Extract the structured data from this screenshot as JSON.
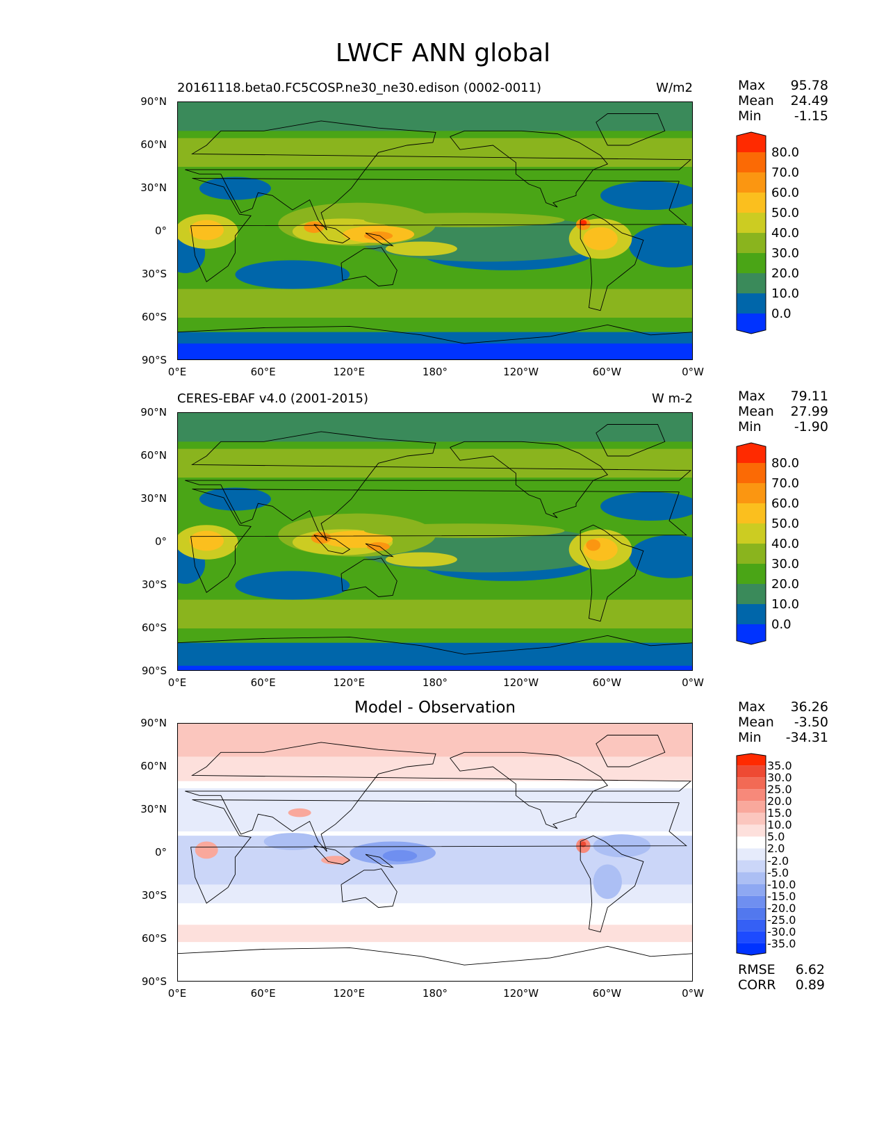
{
  "figure_title": "LWCF ANN global",
  "y_ticks": [
    "90°N",
    "60°N",
    "30°N",
    "0°",
    "30°S",
    "60°S",
    "90°S"
  ],
  "x_ticks": [
    "0°E",
    "60°E",
    "120°E",
    "180°",
    "120°W",
    "60°W",
    "0°W"
  ],
  "panels": [
    {
      "title_left": "20161118.beta0.FC5COSP.ne30_ne30.edison (0002-0011)",
      "title_right": "W/m2",
      "title_center": "",
      "stats": [
        {
          "label": "Max",
          "value": "95.78"
        },
        {
          "label": "Mean",
          "value": "24.49"
        },
        {
          "label": "Min",
          "value": "-1.15"
        }
      ],
      "colorbar_labels": [
        "80.0",
        "70.0",
        "60.0",
        "50.0",
        "40.0",
        "30.0",
        "20.0",
        "10.0",
        "0.0"
      ]
    },
    {
      "title_left": "CERES-EBAF v4.0 (2001-2015)",
      "title_right": "W m-2",
      "title_center": "",
      "stats": [
        {
          "label": "Max",
          "value": "79.11"
        },
        {
          "label": "Mean",
          "value": "27.99"
        },
        {
          "label": "Min",
          "value": "-1.90"
        }
      ],
      "colorbar_labels": [
        "80.0",
        "70.0",
        "60.0",
        "50.0",
        "40.0",
        "30.0",
        "20.0",
        "10.0",
        "0.0"
      ]
    },
    {
      "title_left": "",
      "title_right": "",
      "title_center": "Model - Observation",
      "stats": [
        {
          "label": "Max",
          "value": "36.26"
        },
        {
          "label": "Mean",
          "value": "-3.50"
        },
        {
          "label": "Min",
          "value": "-34.31"
        }
      ],
      "colorbar_labels": [
        "35.0",
        "30.0",
        "25.0",
        "20.0",
        "15.0",
        "10.0",
        "5.0",
        "2.0",
        "-2.0",
        "-5.0",
        "-10.0",
        "-15.0",
        "-20.0",
        "-25.0",
        "-30.0",
        "-35.0"
      ],
      "metrics": [
        {
          "label": "RMSE",
          "value": "6.62"
        },
        {
          "label": "CORR",
          "value": "0.89"
        }
      ]
    }
  ],
  "chart_data": [
    {
      "type": "heatmap",
      "title": "20161118.beta0.FC5COSP.ne30_ne30.edison (0002-0011)",
      "units": "W/m2",
      "x_range": [
        "0°E",
        "0°W"
      ],
      "y_range": [
        "90°S",
        "90°N"
      ],
      "contour_levels": [
        0,
        10,
        20,
        30,
        40,
        50,
        60,
        70,
        80
      ],
      "colors": [
        "#0033ff",
        "#0066aa",
        "#3a8a5a",
        "#4aa516",
        "#8ab41e",
        "#cccc22",
        "#fbbf1e",
        "#fb9611",
        "#fb6a05",
        "#ff2a00"
      ],
      "max": 95.78,
      "mean": 24.49,
      "min": -1.15
    },
    {
      "type": "heatmap",
      "title": "CERES-EBAF v4.0 (2001-2015)",
      "units": "W m-2",
      "x_range": [
        "0°E",
        "0°W"
      ],
      "y_range": [
        "90°S",
        "90°N"
      ],
      "contour_levels": [
        0,
        10,
        20,
        30,
        40,
        50,
        60,
        70,
        80
      ],
      "colors": [
        "#0033ff",
        "#0066aa",
        "#3a8a5a",
        "#4aa516",
        "#8ab41e",
        "#cccc22",
        "#fbbf1e",
        "#fb9611",
        "#fb6a05",
        "#ff2a00"
      ],
      "max": 79.11,
      "mean": 27.99,
      "min": -1.9
    },
    {
      "type": "heatmap",
      "title": "Model - Observation",
      "x_range": [
        "0°E",
        "0°W"
      ],
      "y_range": [
        "90°S",
        "90°N"
      ],
      "contour_levels": [
        -35,
        -30,
        -25,
        -20,
        -15,
        -10,
        -5,
        -2,
        2,
        5,
        10,
        15,
        20,
        25,
        30,
        35
      ],
      "colors": [
        "#0033ff",
        "#1d4bff",
        "#3560f5",
        "#5278ee",
        "#6f8ff0",
        "#8ea8f2",
        "#acbff4",
        "#cbd6f8",
        "#e6ebfb",
        "#ffffff",
        "#fde0dc",
        "#fbc6be",
        "#f9a89c",
        "#f7897a",
        "#f26a55",
        "#ee4a33",
        "#ff2a00"
      ],
      "max": 36.26,
      "mean": -3.5,
      "min": -34.31,
      "rmse": 6.62,
      "corr": 0.89
    }
  ]
}
